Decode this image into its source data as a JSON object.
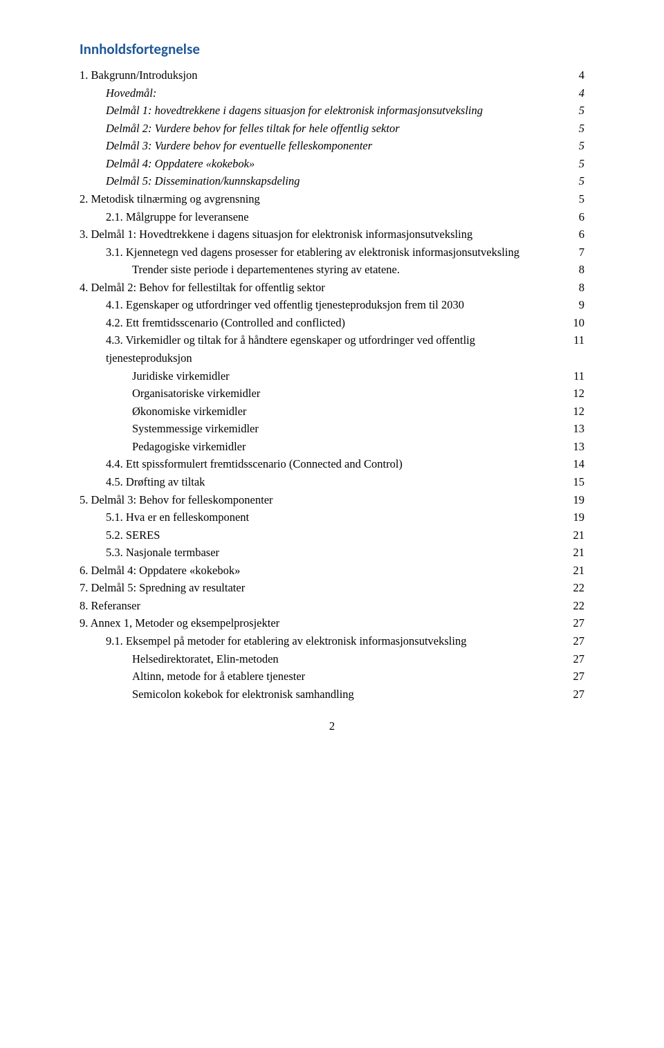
{
  "title": "Innholdsfortegnelse",
  "page_number": "2",
  "toc": [
    {
      "label": "1.   Bakgrunn/Introduksjon",
      "page": "4",
      "level": 0,
      "italic": false
    },
    {
      "label": "Hovedmål:",
      "page": "4",
      "level": 1,
      "italic": true
    },
    {
      "label": "Delmål 1: hovedtrekkene i dagens situasjon for elektronisk informasjonsutveksling",
      "page": "5",
      "level": 1,
      "italic": true
    },
    {
      "label": "Delmål 2: Vurdere behov for felles tiltak for hele offentlig sektor",
      "page": "5",
      "level": 1,
      "italic": true
    },
    {
      "label": "Delmål 3: Vurdere behov for eventuelle felleskomponenter",
      "page": "5",
      "level": 1,
      "italic": true
    },
    {
      "label": "Delmål 4: Oppdatere «kokebok»",
      "page": "5",
      "level": 1,
      "italic": true
    },
    {
      "label": "Delmål 5: Dissemination/kunnskapsdeling",
      "page": "5",
      "level": 1,
      "italic": true
    },
    {
      "label": "2.   Metodisk tilnærming og avgrensning",
      "page": "5",
      "level": 0,
      "italic": false
    },
    {
      "label": "2.1.    Målgruppe for leveransene",
      "page": "6",
      "level": 2,
      "italic": false
    },
    {
      "label": "3.   Delmål 1: Hovedtrekkene i dagens situasjon for elektronisk informasjonsutveksling",
      "page": "6",
      "level": 0,
      "italic": false
    },
    {
      "label": "3.1.    Kjennetegn ved dagens prosesser for etablering av elektronisk informasjonsutveksling",
      "page": "7",
      "level": 2,
      "italic": false
    },
    {
      "label": "Trender siste periode i departementenes styring av etatene.",
      "page": "8",
      "level": 3,
      "italic": false
    },
    {
      "label": "4.   Delmål 2: Behov for fellestiltak for offentlig sektor",
      "page": "8",
      "level": 0,
      "italic": false
    },
    {
      "label": "4.1.    Egenskaper og utfordringer ved offentlig tjenesteproduksjon frem til 2030",
      "page": "9",
      "level": 2,
      "italic": false
    },
    {
      "label": "4.2.    Ett fremtidsscenario (Controlled and conflicted)",
      "page": "10",
      "level": 2,
      "italic": false
    },
    {
      "label": "4.3.    Virkemidler og tiltak for å håndtere egenskaper og utfordringer ved offentlig tjenesteproduksjon",
      "page": "11",
      "level": 2,
      "italic": false
    },
    {
      "label": "Juridiske virkemidler",
      "page": "11",
      "level": 3,
      "italic": false
    },
    {
      "label": "Organisatoriske virkemidler",
      "page": "12",
      "level": 3,
      "italic": false
    },
    {
      "label": "Økonomiske virkemidler",
      "page": "12",
      "level": 3,
      "italic": false
    },
    {
      "label": "Systemmessige virkemidler",
      "page": "13",
      "level": 3,
      "italic": false
    },
    {
      "label": "Pedagogiske virkemidler",
      "page": "13",
      "level": 3,
      "italic": false
    },
    {
      "label": "4.4.    Ett spissformulert fremtidsscenario (Connected and Control)",
      "page": "14",
      "level": 2,
      "italic": false
    },
    {
      "label": "4.5.    Drøfting av tiltak",
      "page": "15",
      "level": 2,
      "italic": false
    },
    {
      "label": "5.   Delmål 3: Behov for felleskomponenter",
      "page": "19",
      "level": 0,
      "italic": false
    },
    {
      "label": "5.1.    Hva er en felleskomponent",
      "page": "19",
      "level": 2,
      "italic": false
    },
    {
      "label": "5.2.    SERES",
      "page": "21",
      "level": 2,
      "italic": false
    },
    {
      "label": "5.3.    Nasjonale termbaser",
      "page": "21",
      "level": 2,
      "italic": false
    },
    {
      "label": "6.   Delmål 4: Oppdatere «kokebok»",
      "page": "21",
      "level": 0,
      "italic": false
    },
    {
      "label": "7.   Delmål 5: Spredning av resultater",
      "page": "22",
      "level": 0,
      "italic": false
    },
    {
      "label": "8.   Referanser",
      "page": "22",
      "level": 0,
      "italic": false
    },
    {
      "label": "9.   Annex 1, Metoder og eksempelprosjekter",
      "page": "27",
      "level": 0,
      "italic": false
    },
    {
      "label": "9.1.    Eksempel på metoder for etablering av elektronisk informasjonsutveksling",
      "page": "27",
      "level": 2,
      "italic": false
    },
    {
      "label": "Helsedirektoratet, Elin-metoden",
      "page": "27",
      "level": 3,
      "italic": false
    },
    {
      "label": "Altinn, metode for å etablere tjenester",
      "page": "27",
      "level": 3,
      "italic": false
    },
    {
      "label": "Semicolon kokebok for elektronisk samhandling",
      "page": "27",
      "level": 3,
      "italic": false
    }
  ]
}
